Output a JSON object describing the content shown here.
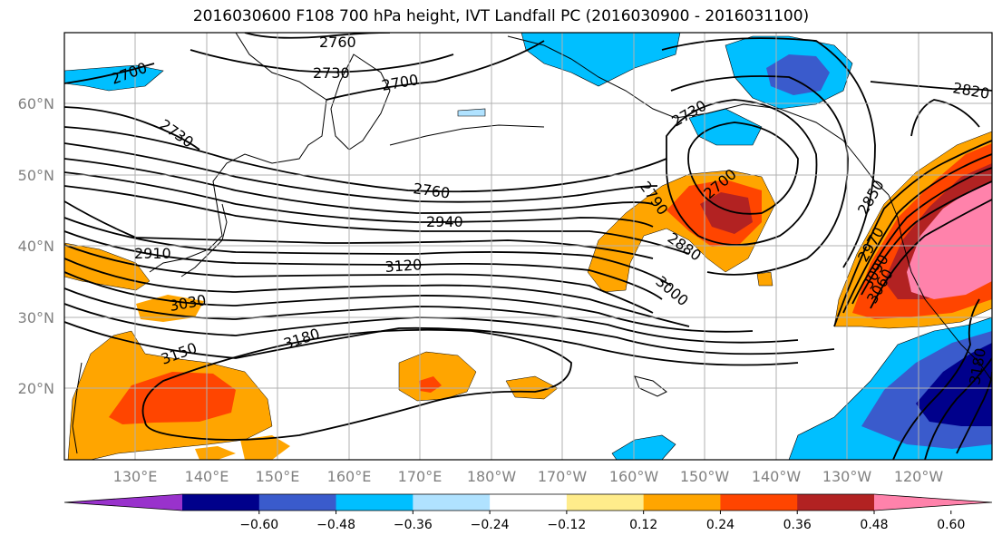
{
  "title": "2016030600 F108 700 hPa height, IVT Landfall PC (2016030900 - 2016031100)",
  "map": {
    "lat_ticks": [
      "60°N",
      "50°N",
      "40°N",
      "30°N",
      "20°N"
    ],
    "lon_ticks": [
      "130°E",
      "140°E",
      "150°E",
      "160°E",
      "170°E",
      "180°W",
      "170°W",
      "160°W",
      "150°W",
      "140°W",
      "130°W",
      "120°W"
    ],
    "contour_labels": [
      "2760",
      "2730",
      "2700",
      "2700",
      "2730",
      "2730",
      "2760",
      "2940",
      "2910",
      "3120",
      "3030",
      "3150",
      "3180",
      "2790",
      "2880",
      "3000",
      "2700",
      "2850",
      "2970",
      "3090",
      "3060",
      "2820",
      "3180"
    ]
  },
  "colorbar": {
    "tick_labels": [
      "−0.60",
      "−0.48",
      "−0.36",
      "−0.24",
      "−0.12",
      "0.12",
      "0.24",
      "0.36",
      "0.48",
      "0.60"
    ],
    "colors": [
      "#9932cc",
      "#00008b",
      "#3a5bcc",
      "#00bfff",
      "#b0e2ff",
      "#ffffff",
      "#ffec8b",
      "#ffa500",
      "#ff4500",
      "#b22222",
      "#ff82ab"
    ]
  }
}
